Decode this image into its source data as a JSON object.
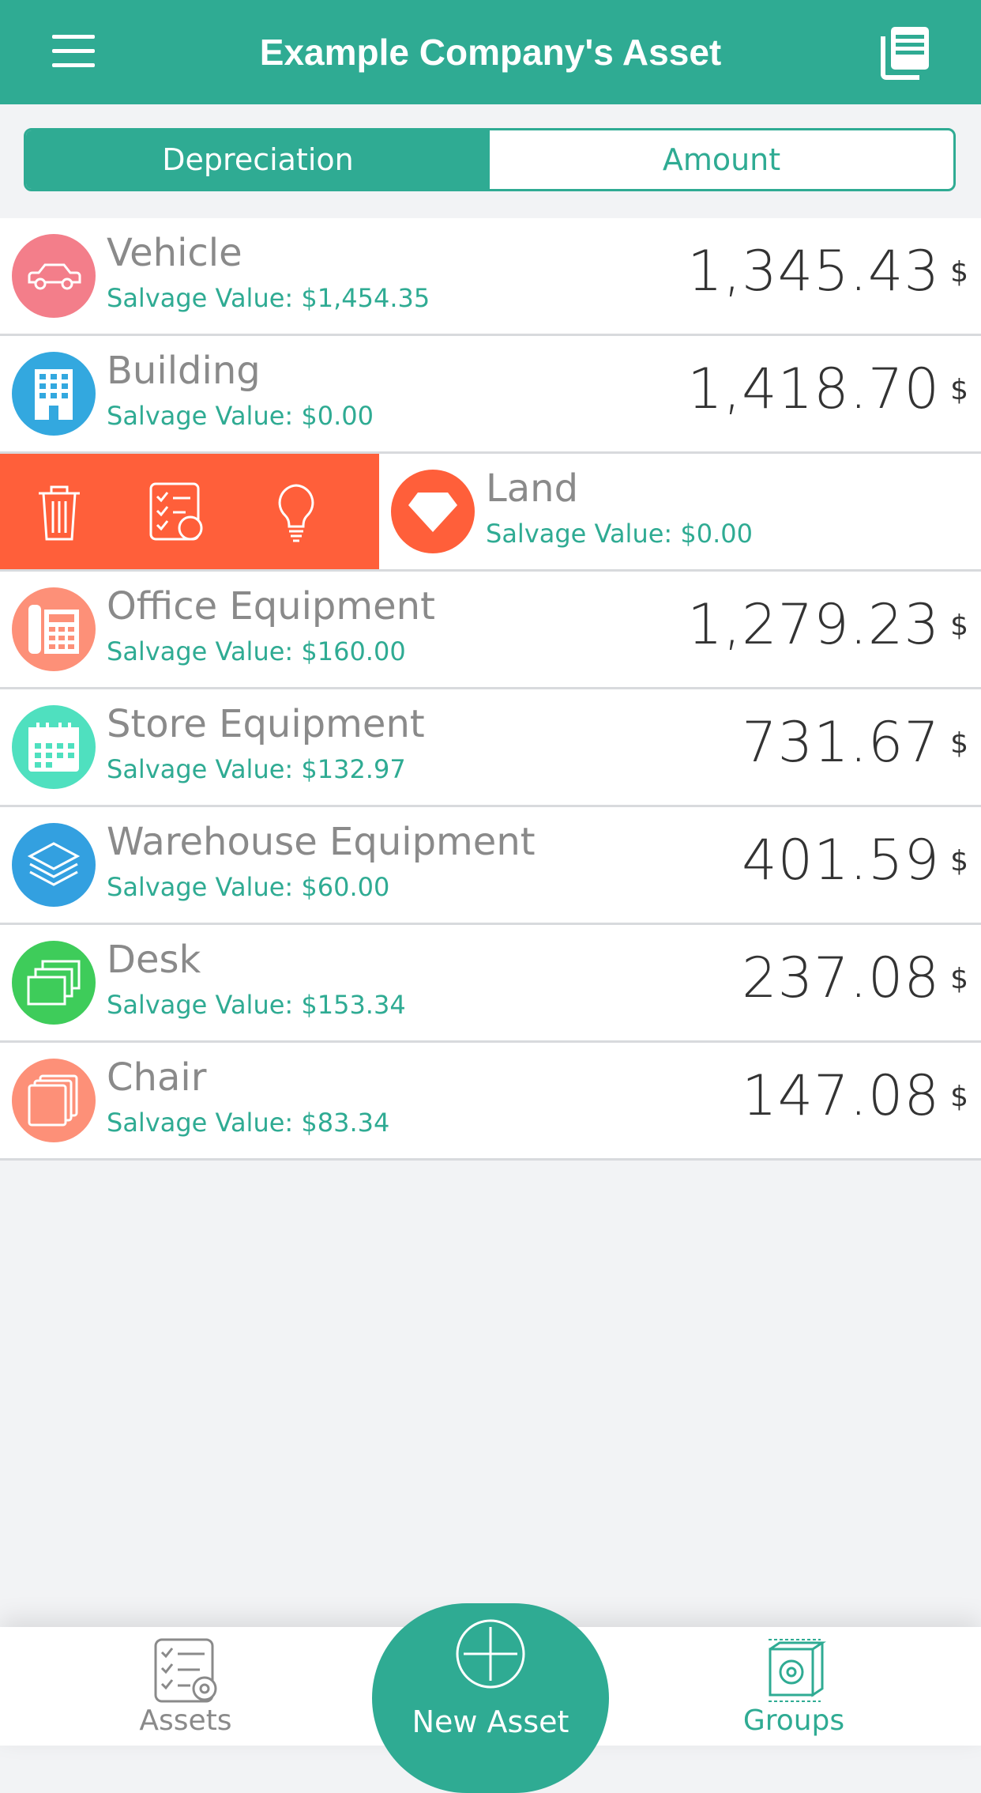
{
  "header": {
    "title": "Example Company's Asset",
    "menu_icon": "hamburger-menu-icon",
    "report_icon": "report-document-icon",
    "color": "#2fab93"
  },
  "segmented": {
    "options": [
      "Depreciation",
      "Amount"
    ],
    "selected": "Depreciation"
  },
  "assets": [
    {
      "name": "Vehicle",
      "salvage": "Salvage Value: $1,454.35",
      "amount": "1,345.43",
      "currency": "$",
      "icon": "car-icon",
      "color": "#f37e8a"
    },
    {
      "name": "Building",
      "salvage": "Salvage Value: $0.00",
      "amount": "1,418.70",
      "currency": "$",
      "icon": "building-icon",
      "color": "#33a8df"
    },
    {
      "name": "Land",
      "salvage": "Salvage Value: $0.00",
      "icon": "diamond-icon",
      "color": "#ff5f3a",
      "swiped": true,
      "actions": [
        "trash-icon",
        "checklist-refresh-icon",
        "lightbulb-icon"
      ]
    },
    {
      "name": "Office Equipment",
      "salvage": "Salvage Value: $160.00",
      "amount": "1,279.23",
      "currency": "$",
      "icon": "telephone-icon",
      "color": "#fd9078"
    },
    {
      "name": "Store Equipment",
      "salvage": "Salvage Value: $132.97",
      "amount": "731.67",
      "currency": "$",
      "icon": "calendar-icon",
      "color": "#4fe0bf"
    },
    {
      "name": "Warehouse Equipment",
      "salvage": "Salvage Value: $60.00",
      "amount": "401.59",
      "currency": "$",
      "icon": "layers-icon",
      "color": "#33a0e0"
    },
    {
      "name": "Desk",
      "salvage": "Salvage Value: $153.34",
      "amount": "237.08",
      "currency": "$",
      "icon": "stacked-windows-icon",
      "color": "#3ecc5a"
    },
    {
      "name": "Chair",
      "salvage": "Salvage Value: $83.34",
      "amount": "147.08",
      "currency": "$",
      "icon": "stacked-squares-icon",
      "color": "#fd9078"
    }
  ],
  "bottom_nav": {
    "assets_label": "Assets",
    "new_asset_label": "New Asset",
    "groups_label": "Groups"
  }
}
